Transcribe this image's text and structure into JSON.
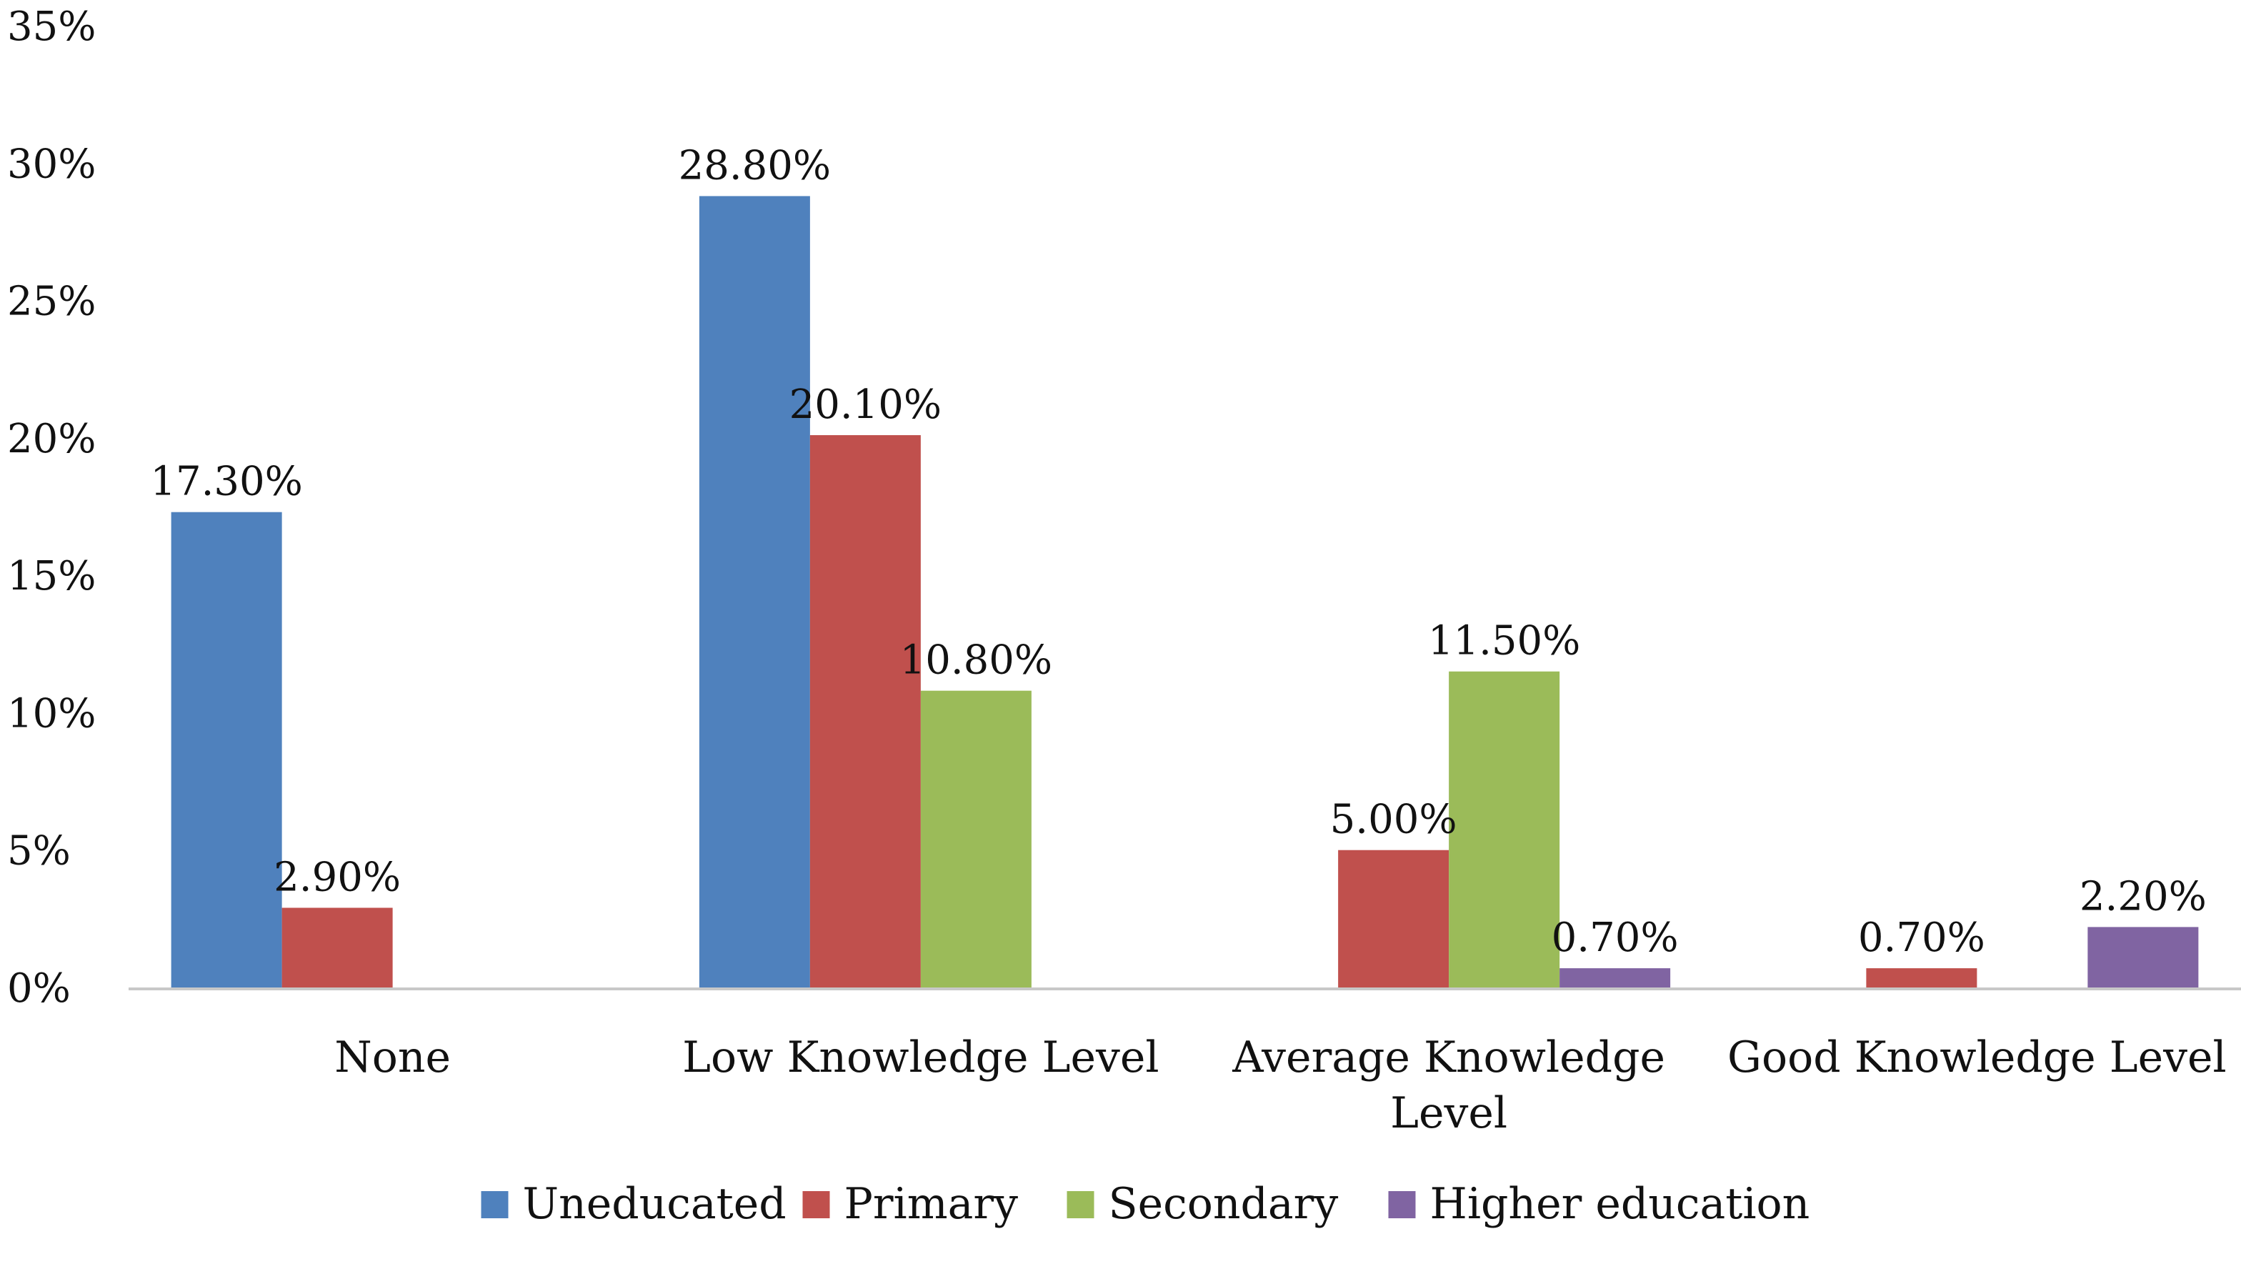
{
  "chart_data": {
    "type": "bar",
    "title": "",
    "xlabel": "",
    "ylabel": "",
    "categories": [
      [
        "None"
      ],
      [
        "Low Knowledge Level"
      ],
      [
        "Average Knowledge",
        "Level"
      ],
      [
        "Good Knowledge Level"
      ]
    ],
    "series": [
      {
        "name": "Uneducated",
        "color": "#4F81BD",
        "values": [
          17.3,
          28.8,
          null,
          null
        ],
        "labels": [
          "17.30%",
          "28.80%",
          "",
          ""
        ]
      },
      {
        "name": "Primary",
        "color": "#C0504D",
        "values": [
          2.9,
          20.1,
          5.0,
          0.7
        ],
        "labels": [
          "2.90%",
          "20.10%",
          "5.00%",
          "0.70%"
        ]
      },
      {
        "name": "Secondary",
        "color": "#9BBB59",
        "values": [
          null,
          10.8,
          11.5,
          null
        ],
        "labels": [
          "",
          "10.80%",
          "11.50%",
          ""
        ]
      },
      {
        "name": "Higher education",
        "color": "#8064A2",
        "values": [
          null,
          null,
          0.7,
          2.2
        ],
        "labels": [
          "",
          "",
          "0.70%",
          "2.20%"
        ]
      }
    ],
    "ylim": [
      0,
      35
    ],
    "yticks": [
      0,
      5,
      10,
      15,
      20,
      25,
      30,
      35
    ],
    "ytick_labels": [
      "0%",
      "5%",
      "10%",
      "15%",
      "20%",
      "25%",
      "30%",
      "35%"
    ],
    "grid": false,
    "legend": "bottom"
  }
}
